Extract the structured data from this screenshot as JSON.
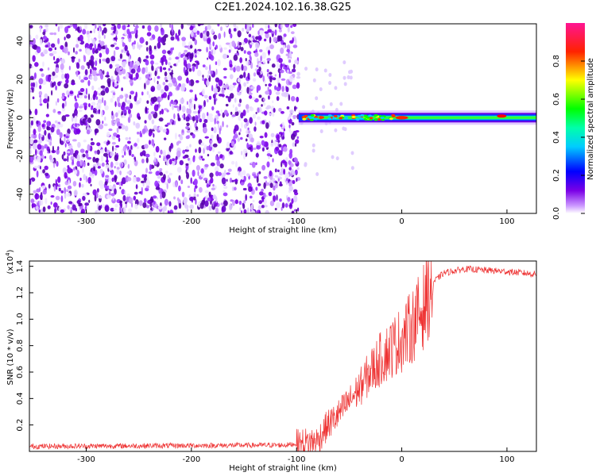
{
  "title": "C2E1.2024.102.16.38.G25",
  "chart_data": [
    {
      "type": "heatmap",
      "name": "spectrogram",
      "xlabel": "Height of straight line (km)",
      "ylabel": "Frequency (Hz)",
      "xlim": [
        -354,
        128
      ],
      "ylim": [
        -50,
        49
      ],
      "xticks": [
        "-300",
        "-200",
        "-100",
        "0",
        "100"
      ],
      "yticks": [
        "-40",
        "-20",
        "0",
        "20",
        "40"
      ],
      "noise_region_x": [
        -354,
        -98
      ],
      "signal_region_x": [
        -98,
        128
      ],
      "colorbar": {
        "label": "Normalized spectral amplitude",
        "range": [
          0.0,
          1.0
        ],
        "ticks": [
          "0.0",
          "0.2",
          "0.4",
          "0.6",
          "0.8"
        ],
        "colors": [
          "#ffffff",
          "#7a00e6",
          "#0000ff",
          "#00ffff",
          "#00ff00",
          "#ffff00",
          "#ff0000",
          "#ff1493"
        ]
      }
    },
    {
      "type": "line",
      "name": "snr",
      "xlabel": "Height of straight line (km)",
      "ylabel": "SNR (10 * v/v)",
      "yscale_label": "(x10",
      "yscale_exp": "4",
      "yscale_close": ")",
      "xlim": [
        -354,
        128
      ],
      "ylim": [
        0,
        1.44
      ],
      "xticks": [
        "-300",
        "-200",
        "-100",
        "0",
        "100"
      ],
      "yticks": [
        "0.2",
        "0.4",
        "0.6",
        "0.8",
        "1.0",
        "1.2",
        "1.4"
      ],
      "line_color": "#ee3333",
      "profile": {
        "x": [
          -354,
          -110,
          -100,
          -80,
          -75,
          -70,
          -60,
          -50,
          -40,
          -30,
          -20,
          -10,
          0,
          10,
          20,
          25,
          30,
          40,
          60,
          80,
          100,
          128
        ],
        "y": [
          0.03,
          0.04,
          0.05,
          0.08,
          0.15,
          0.2,
          0.28,
          0.38,
          0.48,
          0.6,
          0.7,
          0.78,
          0.85,
          0.95,
          1.08,
          1.2,
          1.28,
          1.35,
          1.38,
          1.37,
          1.36,
          1.34
        ]
      }
    }
  ]
}
